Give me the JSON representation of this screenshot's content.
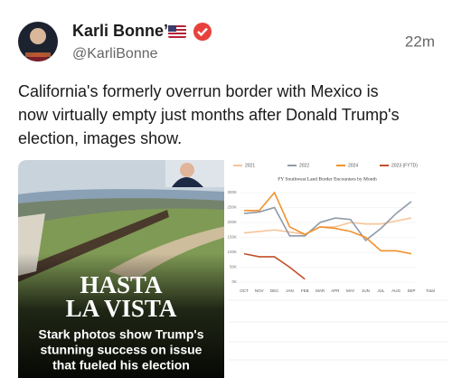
{
  "post": {
    "author": "Karli Bonne’",
    "handle": "@KarliBonne",
    "time": "22m",
    "text_lines": [
      "California's formerly overrun border with Mexico is",
      "now virtually empty just months after Donald Trump's",
      "election, images show."
    ]
  },
  "image": {
    "headline_lines": [
      "HASTA",
      "LA VISTA"
    ],
    "caption_lines": [
      "Stark photos show Trump's",
      "stunning success on issue",
      "that fueled his election"
    ],
    "chart": {
      "type": "line",
      "title": "FY Southwest Land Border Encounters by Month",
      "categories": [
        "OCT",
        "NOV",
        "DEC",
        "JAN",
        "FEB",
        "MAR",
        "APR",
        "MAY",
        "JUN",
        "JUL",
        "AUG",
        "SEP"
      ],
      "total_label": "Total",
      "ylim": [
        0,
        300
      ],
      "yticks": [
        {
          "value": 0,
          "label": "0K"
        },
        {
          "value": 50,
          "label": "50K"
        },
        {
          "value": 100,
          "label": "100K"
        },
        {
          "value": 150,
          "label": "150K"
        },
        {
          "value": 200,
          "label": "200K"
        },
        {
          "value": 250,
          "label": "250K"
        },
        {
          "value": 300,
          "label": "300K"
        }
      ],
      "series": [
        {
          "name": "2021",
          "color": "#f6c59a",
          "values": [
            165,
            170,
            175,
            168,
            160,
            185,
            185,
            200,
            195,
            195,
            205,
            215
          ]
        },
        {
          "name": "2022",
          "color": "#8f9aa8",
          "values": [
            230,
            235,
            250,
            155,
            155,
            200,
            215,
            210,
            140,
            180,
            230,
            270
          ]
        },
        {
          "name": "2024",
          "color": "#f0922f",
          "values": [
            240,
            240,
            300,
            185,
            160,
            185,
            180,
            170,
            150,
            105,
            105,
            95
          ]
        },
        {
          "name": "2023 (FYTD)",
          "color": "#c0502a",
          "values": [
            95,
            85,
            85,
            50,
            10,
            null,
            null,
            null,
            null,
            null,
            null,
            null
          ]
        }
      ]
    }
  }
}
